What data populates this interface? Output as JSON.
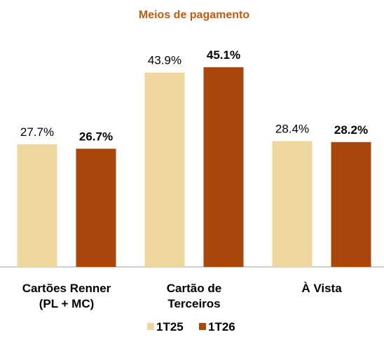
{
  "chart_data": {
    "type": "bar",
    "title": "Meios de pagamento",
    "categories": [
      "Cartões Renner\n(PL + MC)",
      "Cartão de\nTerceiros",
      "À Vista"
    ],
    "series": [
      {
        "name": "1T25",
        "color": "#eed69f",
        "values": [
          27.7,
          43.9,
          28.4
        ],
        "value_labels": [
          "27.7%",
          "43.9%",
          "28.4%"
        ]
      },
      {
        "name": "1T26",
        "color": "#a8470b",
        "values": [
          26.7,
          45.1,
          28.2
        ],
        "value_labels": [
          "26.7%",
          "45.1%",
          "28.2%"
        ]
      }
    ]
  }
}
